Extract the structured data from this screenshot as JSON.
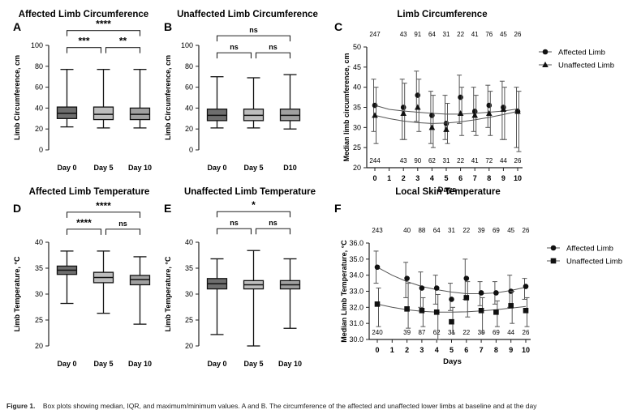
{
  "caption": {
    "label": "Figure 1.",
    "text": "Box plots showing median, IQR, and maximum/minimum values. A and B. The circumference of the affected and unaffected lower limbs at baseline and at the day"
  },
  "chart_data": [
    {
      "id": "A",
      "type": "box",
      "title": "Affected Limb Circumference",
      "ylabel": "Limb Circumference, cm",
      "xlabel": "",
      "ylim": [
        0,
        100
      ],
      "yticks": [
        0,
        20,
        40,
        60,
        80,
        100
      ],
      "categories": [
        "Day 0",
        "Day 5",
        "Day 10"
      ],
      "colors": [
        "#6e6e6e",
        "#bdbdbd",
        "#a0a0a0"
      ],
      "boxes": [
        {
          "min": 22,
          "q1": 30,
          "median": 35,
          "q3": 41,
          "max": 77
        },
        {
          "min": 21,
          "q1": 29,
          "median": 34,
          "q3": 41,
          "max": 77
        },
        {
          "min": 21,
          "q1": 29,
          "median": 34,
          "q3": 40,
          "max": 77
        }
      ],
      "brackets": [
        {
          "from": 0,
          "to": 2,
          "level": 2,
          "label": "****"
        },
        {
          "from": 0,
          "to": 1,
          "level": 1,
          "label": "***"
        },
        {
          "from": 1,
          "to": 2,
          "level": 1,
          "label": "**"
        }
      ]
    },
    {
      "id": "B",
      "type": "box",
      "title": "Unaffected Limb Circumference",
      "ylabel": "Limb Circumference, cm",
      "xlabel": "",
      "ylim": [
        0,
        100
      ],
      "yticks": [
        0,
        20,
        40,
        60,
        80,
        100
      ],
      "categories": [
        "Day 0",
        "Day 5",
        "D10"
      ],
      "colors": [
        "#6e6e6e",
        "#bdbdbd",
        "#a0a0a0"
      ],
      "boxes": [
        {
          "min": 21,
          "q1": 28,
          "median": 33,
          "q3": 39,
          "max": 70
        },
        {
          "min": 21,
          "q1": 28,
          "median": 33,
          "q3": 39,
          "max": 69
        },
        {
          "min": 20,
          "q1": 28,
          "median": 33,
          "q3": 39,
          "max": 72
        }
      ],
      "brackets": [
        {
          "from": 0,
          "to": 2,
          "level": 2,
          "label": "ns"
        },
        {
          "from": 0,
          "to": 1,
          "level": 1,
          "label": "ns"
        },
        {
          "from": 1,
          "to": 2,
          "level": 1,
          "label": "ns"
        }
      ]
    },
    {
      "id": "C",
      "type": "line",
      "title": "Limb Circumference",
      "ylabel": "Median limb circumference, cm",
      "xlabel": "Days",
      "ylim": [
        20,
        50
      ],
      "yticks": [
        20,
        25,
        30,
        35,
        40,
        45,
        50
      ],
      "x": [
        0,
        1,
        2,
        3,
        4,
        5,
        6,
        7,
        8,
        9,
        10
      ],
      "top_counts": [
        "247",
        "",
        "43",
        "91",
        "64",
        "31",
        "22",
        "41",
        "76",
        "45",
        "26"
      ],
      "bottom_counts": [
        "244",
        "",
        "43",
        "90",
        "62",
        "31",
        "22",
        "41",
        "72",
        "44",
        "26"
      ],
      "legend_position": "right",
      "series": [
        {
          "name": "Affected Limb",
          "marker": "circle",
          "x": [
            0,
            2,
            3,
            4,
            5,
            6,
            7,
            8,
            9,
            10
          ],
          "y": [
            35.5,
            35,
            38,
            33,
            31,
            37.5,
            34,
            35.5,
            35,
            34
          ],
          "err_low": [
            29,
            27,
            31.5,
            26,
            27,
            31,
            29,
            30,
            27,
            25
          ],
          "err_high": [
            42,
            42,
            44,
            39,
            38,
            43,
            40,
            40.5,
            41.5,
            40
          ],
          "trend": [
            35.5,
            34.5,
            34.1,
            33.8,
            33.5,
            33.3,
            33.3,
            33.5,
            33.8,
            34.1,
            34.6
          ]
        },
        {
          "name": "Unaffected Limb",
          "marker": "triangle",
          "x": [
            0,
            2,
            3,
            4,
            5,
            6,
            7,
            8,
            9,
            10
          ],
          "y": [
            33,
            33.5,
            35,
            30,
            29.5,
            33.5,
            33,
            33.5,
            34.5,
            34
          ],
          "err_low": [
            26,
            27,
            29,
            25,
            26,
            28,
            28,
            28,
            27,
            24
          ],
          "err_high": [
            40,
            41,
            42,
            38,
            36,
            40,
            38,
            39,
            40,
            39
          ],
          "trend": [
            33,
            32.2,
            31.6,
            31.2,
            31.0,
            31.1,
            31.4,
            31.9,
            32.5,
            33.2,
            34
          ]
        }
      ]
    },
    {
      "id": "D",
      "type": "box",
      "title": "Affected Limb Temperature",
      "ylabel": "Limb Temperature, °C",
      "xlabel": "",
      "ylim": [
        20,
        40
      ],
      "yticks": [
        20,
        25,
        30,
        35,
        40
      ],
      "categories": [
        "Day 0",
        "Day 5",
        "Day 10"
      ],
      "colors": [
        "#6e6e6e",
        "#bdbdbd",
        "#a0a0a0"
      ],
      "boxes": [
        {
          "min": 28.2,
          "q1": 33.8,
          "median": 34.6,
          "q3": 35.4,
          "max": 38.3
        },
        {
          "min": 26.3,
          "q1": 32.2,
          "median": 33.2,
          "q3": 34.2,
          "max": 38.3
        },
        {
          "min": 24.2,
          "q1": 31.8,
          "median": 32.8,
          "q3": 33.6,
          "max": 37.2
        }
      ],
      "brackets": [
        {
          "from": 0,
          "to": 2,
          "level": 2,
          "label": "****"
        },
        {
          "from": 0,
          "to": 1,
          "level": 1,
          "label": "****"
        },
        {
          "from": 1,
          "to": 2,
          "level": 1,
          "label": "ns"
        }
      ]
    },
    {
      "id": "E",
      "type": "box",
      "title": "Unaffected Limb Temperature",
      "ylabel": "Limb Temperature, °C",
      "xlabel": "",
      "ylim": [
        20,
        40
      ],
      "yticks": [
        20,
        25,
        30,
        35,
        40
      ],
      "categories": [
        "Day 0",
        "Day 5",
        "Day 10"
      ],
      "colors": [
        "#6e6e6e",
        "#bdbdbd",
        "#a0a0a0"
      ],
      "boxes": [
        {
          "min": 22.2,
          "q1": 31,
          "median": 32,
          "q3": 33,
          "max": 36.8
        },
        {
          "min": 20,
          "q1": 31,
          "median": 31.8,
          "q3": 32.6,
          "max": 38.4
        },
        {
          "min": 23.4,
          "q1": 31,
          "median": 31.8,
          "q3": 32.6,
          "max": 36.8
        }
      ],
      "brackets": [
        {
          "from": 0,
          "to": 2,
          "level": 2,
          "label": "*"
        },
        {
          "from": 0,
          "to": 1,
          "level": 1,
          "label": "ns"
        },
        {
          "from": 1,
          "to": 2,
          "level": 1,
          "label": "ns"
        }
      ]
    },
    {
      "id": "F",
      "type": "line",
      "title": "Local Skin Temperature",
      "ylabel": "Median Limb Temperature, °C",
      "xlabel": "Days",
      "ylim": [
        30,
        36
      ],
      "yticks": [
        30.0,
        31.0,
        32.0,
        33.0,
        34.0,
        35.0,
        36.0
      ],
      "ytick_labels": [
        "30.0",
        "31.0",
        "32.0",
        "33.0",
        "34.0",
        "35.0",
        "36.0"
      ],
      "x": [
        0,
        1,
        2,
        3,
        4,
        5,
        6,
        7,
        8,
        9,
        10
      ],
      "top_counts": [
        "243",
        "",
        "40",
        "88",
        "64",
        "31",
        "22",
        "39",
        "69",
        "45",
        "26"
      ],
      "bottom_counts": [
        "240",
        "",
        "39",
        "87",
        "62",
        "31",
        "22",
        "39",
        "69",
        "44",
        "26"
      ],
      "legend_position": "right",
      "series": [
        {
          "name": "Affected Limb",
          "marker": "circle",
          "x": [
            0,
            2,
            3,
            4,
            5,
            6,
            7,
            8,
            9,
            10
          ],
          "y": [
            34.5,
            33.8,
            33.2,
            33.2,
            32.5,
            33.8,
            32.9,
            32.9,
            33.0,
            33.3
          ],
          "err_low": [
            33.5,
            32.6,
            32.0,
            32.2,
            31.8,
            32.5,
            32.1,
            32.2,
            32.0,
            32.5
          ],
          "err_high": [
            35.5,
            34.8,
            34.2,
            34.0,
            33.5,
            35.0,
            33.6,
            33.6,
            34.0,
            33.8
          ],
          "trend": [
            34.5,
            34.0,
            33.6,
            33.3,
            33.1,
            32.95,
            32.85,
            32.85,
            32.9,
            33.05,
            33.25
          ]
        },
        {
          "name": "Unaffected Limb",
          "marker": "square",
          "x": [
            0,
            2,
            3,
            4,
            5,
            6,
            7,
            8,
            9,
            10
          ],
          "y": [
            32.2,
            31.9,
            31.8,
            31.7,
            31.1,
            32.6,
            31.8,
            31.7,
            32.1,
            31.8
          ],
          "err_low": [
            30.8,
            30.7,
            30.8,
            30.0,
            30.4,
            31.4,
            30.4,
            30.8,
            31.0,
            30.8
          ],
          "err_high": [
            33.2,
            33.5,
            32.6,
            32.8,
            32.0,
            33.6,
            32.6,
            32.4,
            33.0,
            32.6
          ],
          "trend": [
            32.2,
            32.0,
            31.85,
            31.75,
            31.7,
            31.7,
            31.72,
            31.78,
            31.85,
            31.95,
            32.05
          ]
        }
      ]
    }
  ]
}
